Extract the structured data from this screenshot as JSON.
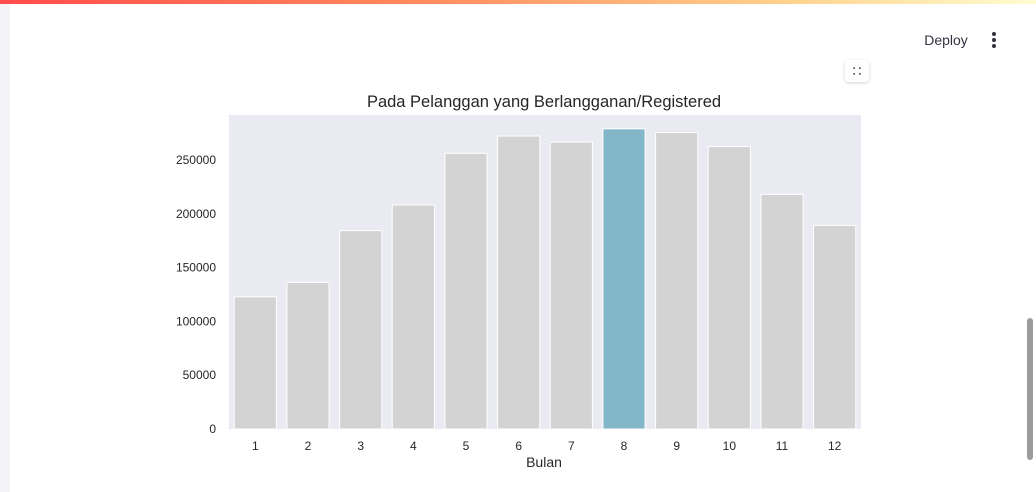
{
  "toolbar": {
    "deploy_label": "Deploy"
  },
  "icons": {
    "menu": "kebab-menu-icon",
    "fullscreen": "fullscreen-icon"
  },
  "chart_data": {
    "type": "bar",
    "title": "Pada Pelanggan yang Berlangganan/Registered",
    "xlabel": "Bulan",
    "ylabel": "",
    "categories": [
      "1",
      "2",
      "3",
      "4",
      "5",
      "6",
      "7",
      "8",
      "9",
      "10",
      "11",
      "12"
    ],
    "values": [
      122891,
      136389,
      184476,
      208292,
      256401,
      272436,
      266791,
      279155,
      275668,
      262592,
      218228,
      189343
    ],
    "ylim": [
      0,
      292000
    ],
    "yticks": [
      0,
      50000,
      100000,
      150000,
      200000,
      250000
    ],
    "ytick_labels": [
      "0",
      "50000",
      "100000",
      "150000",
      "200000",
      "250000"
    ],
    "highlight_index": 7,
    "colors": {
      "bar": "#d3d3d3",
      "highlight": "#82b6c8",
      "plot_bg": "#eaeaf2"
    },
    "grid": false,
    "legend": "none"
  }
}
